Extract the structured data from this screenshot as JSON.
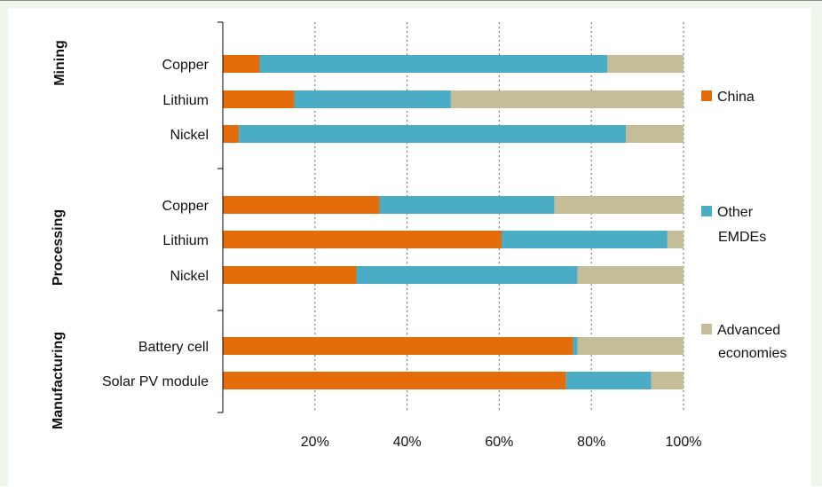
{
  "colors": {
    "china": "#e46c0a",
    "other_emdes": "#4bacc6",
    "advanced": "#c4bd97",
    "gridline": "#7f7f7f",
    "axis": "#000000"
  },
  "chart_data": {
    "type": "bar",
    "orientation": "horizontal",
    "stacked": true,
    "title": "",
    "xlabel": "",
    "ylabel": "",
    "xlim": [
      0,
      100
    ],
    "x_ticks": [
      20,
      40,
      60,
      80,
      100
    ],
    "x_tick_labels": [
      "20%",
      "40%",
      "60%",
      "80%",
      "100%"
    ],
    "grid": "vertical dotted",
    "legend_position": "right",
    "groups": [
      {
        "name": "Mining",
        "categories": [
          "Copper",
          "Lithium",
          "Nickel"
        ]
      },
      {
        "name": "Processing",
        "categories": [
          "Copper",
          "Lithium",
          "Nickel"
        ]
      },
      {
        "name": "Manufacturing",
        "categories": [
          "Battery cell",
          "Solar PV module"
        ]
      }
    ],
    "series": [
      {
        "name": "China",
        "color": "#e46c0a",
        "values": [
          8,
          15.5,
          3.5,
          34,
          60.5,
          29,
          76,
          74.5
        ]
      },
      {
        "name": "Other EMDEs",
        "color": "#4bacc6",
        "values": [
          75.5,
          34,
          84,
          38,
          36,
          48,
          1,
          18.5
        ]
      },
      {
        "name": "Advanced economies",
        "color": "#c4bd97",
        "values": [
          16.5,
          50.5,
          12.5,
          28,
          3.5,
          23,
          23,
          7
        ]
      }
    ],
    "legend": [
      {
        "lines": [
          "China"
        ],
        "color": "#e46c0a"
      },
      {
        "lines": [
          "Other",
          "EMDEs"
        ],
        "color": "#4bacc6"
      },
      {
        "lines": [
          "Advanced",
          "economies"
        ],
        "color": "#c4bd97"
      }
    ]
  }
}
